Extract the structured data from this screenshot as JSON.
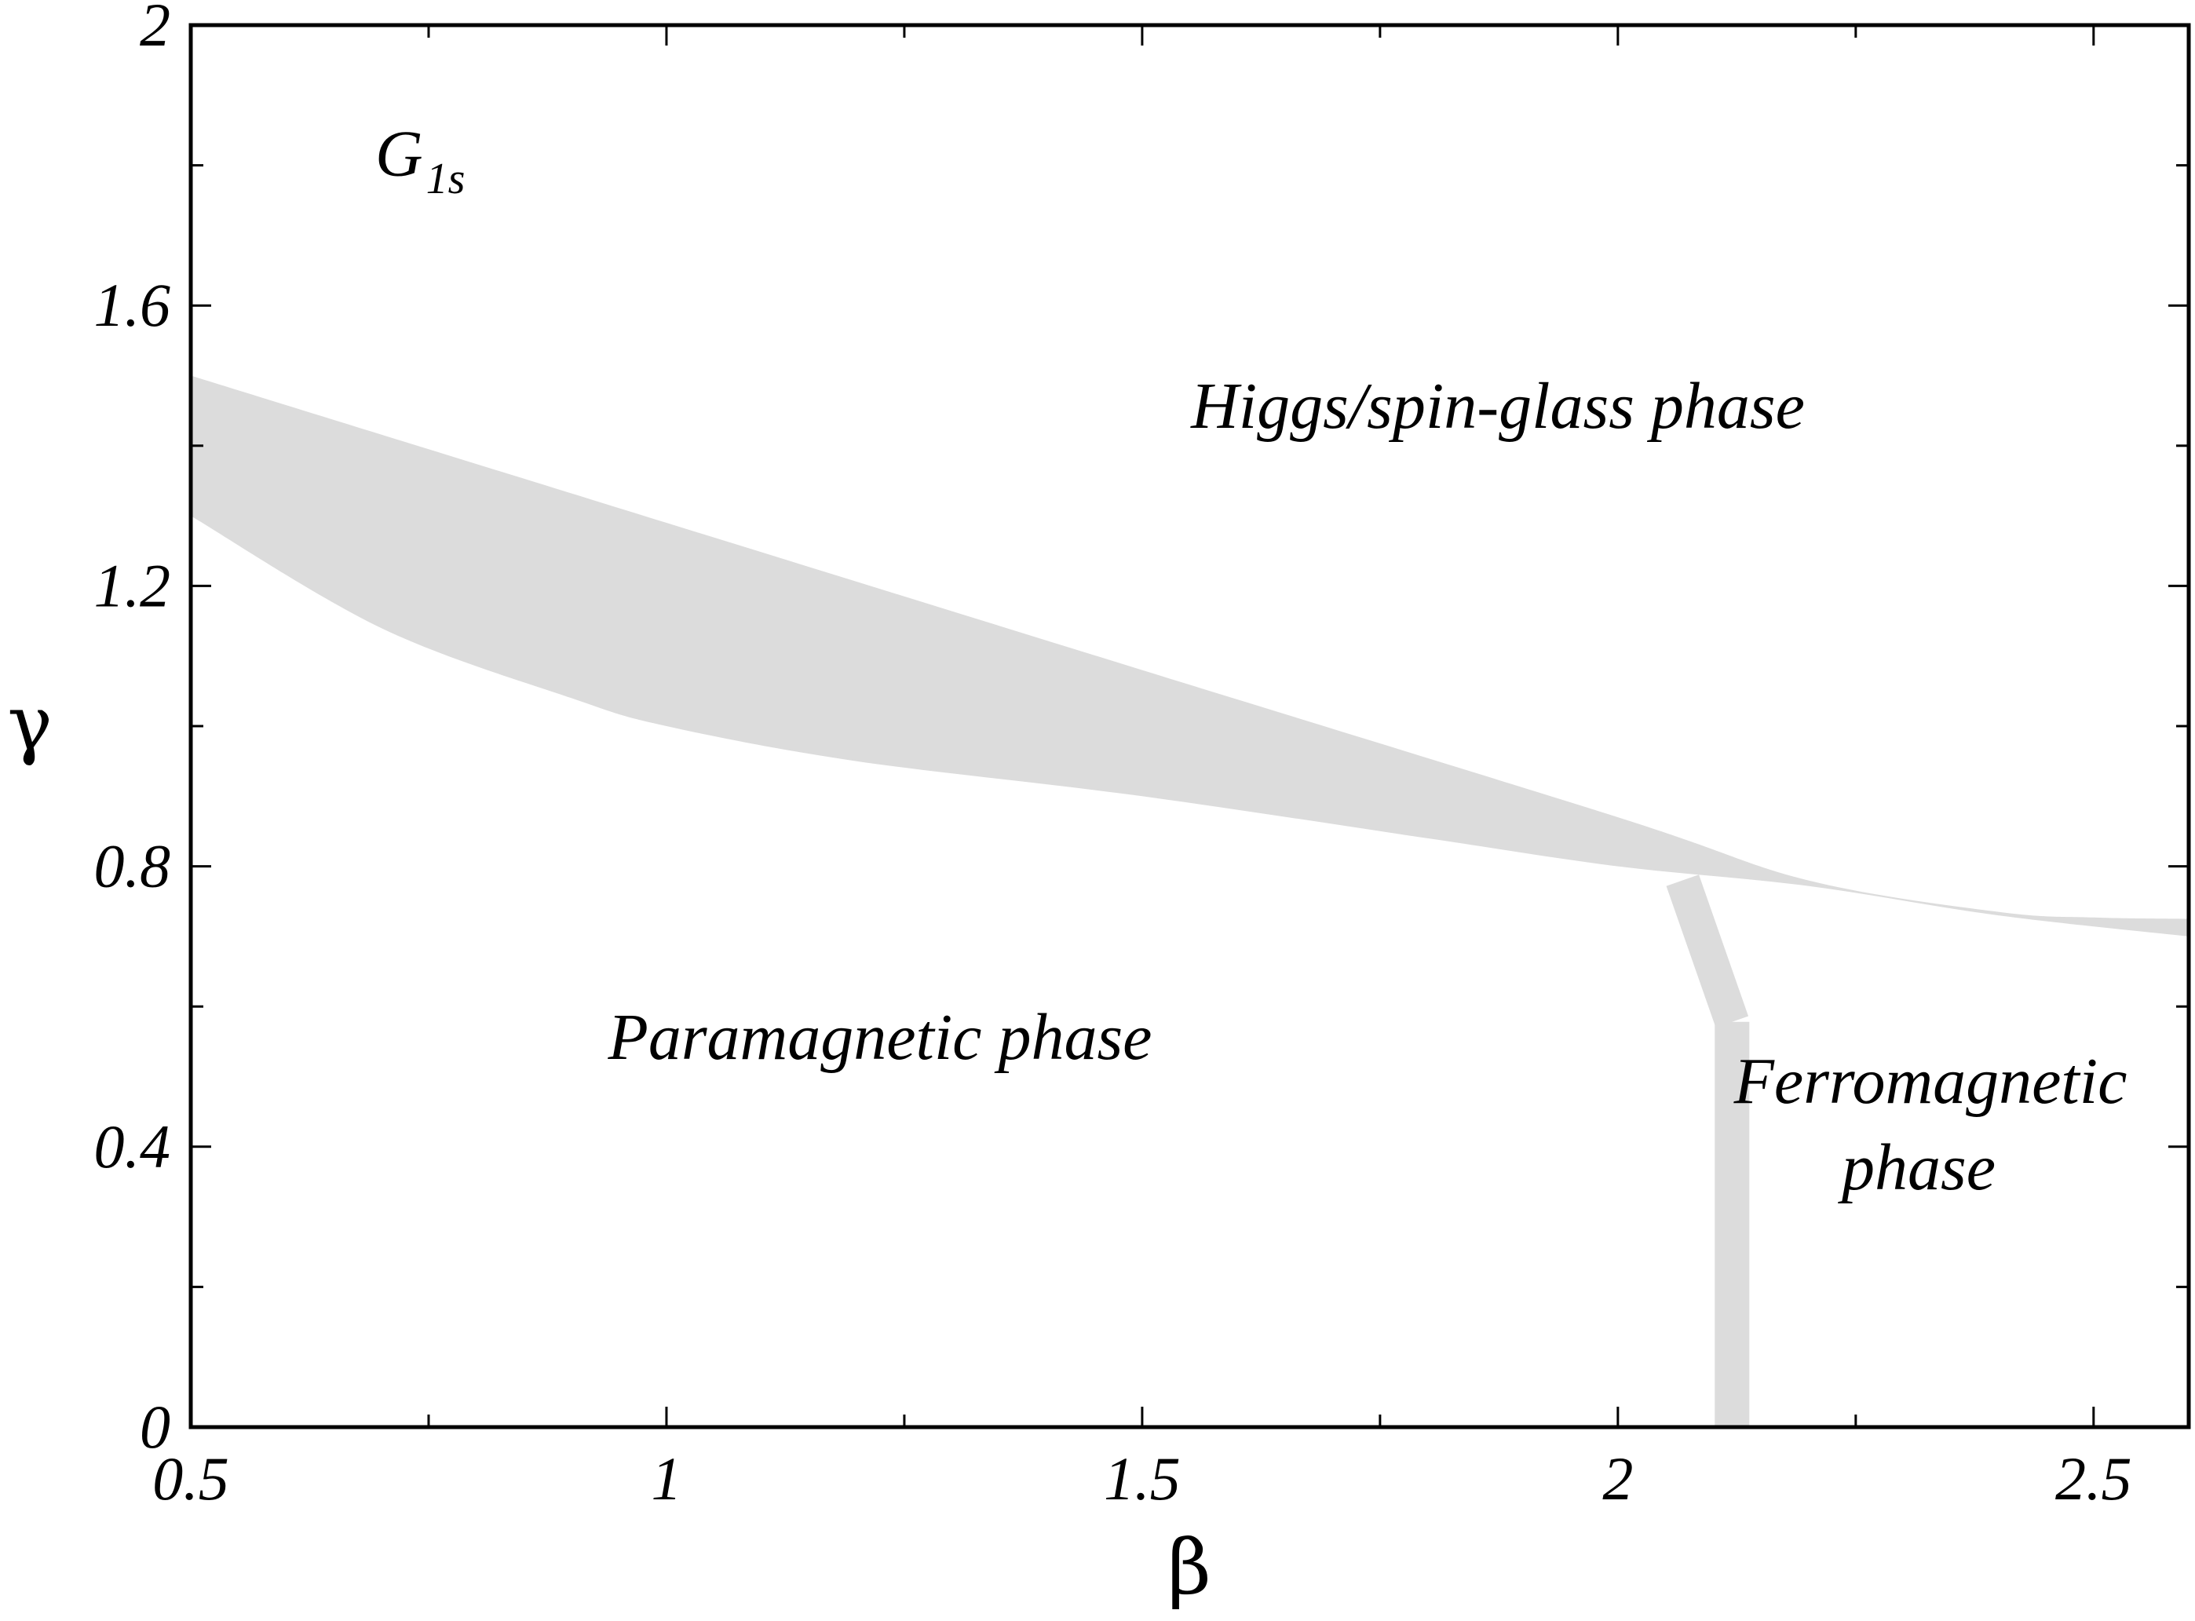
{
  "chart_data": {
    "type": "area",
    "title": "",
    "xlabel": "β",
    "ylabel": "γ",
    "xlim": [
      0.5,
      2.6
    ],
    "ylim": [
      0,
      2
    ],
    "x_ticks": [
      {
        "value": 0.5,
        "label": "0.5"
      },
      {
        "value": 1,
        "label": "1"
      },
      {
        "value": 1.5,
        "label": "1.5"
      },
      {
        "value": 2,
        "label": "2"
      },
      {
        "value": 2.5,
        "label": "2.5"
      }
    ],
    "x_minor_ticks": [
      0.75,
      1.25,
      1.75,
      2.25
    ],
    "y_ticks": [
      {
        "value": 0,
        "label": "0"
      },
      {
        "value": 0.4,
        "label": "0.4"
      },
      {
        "value": 0.8,
        "label": "0.8"
      },
      {
        "value": 1.2,
        "label": "1.2"
      },
      {
        "value": 1.6,
        "label": "1.6"
      },
      {
        "value": 2,
        "label": "2"
      }
    ],
    "y_minor_ticks": [
      0.2,
      0.6,
      1.0,
      1.4,
      1.8
    ],
    "grid": false,
    "fill_color": "#dcdcdc",
    "bands": [
      {
        "upper": [
          [
            0.5,
            1.5
          ],
          [
            1.0,
            1.29
          ],
          [
            1.5,
            1.08
          ],
          [
            2.0,
            0.87
          ],
          [
            2.2,
            0.78
          ],
          [
            2.4,
            0.735
          ],
          [
            2.5,
            0.727
          ],
          [
            2.6,
            0.725
          ]
        ],
        "lower": [
          [
            0.5,
            1.3
          ],
          [
            0.7,
            1.14
          ],
          [
            0.9,
            1.04
          ],
          [
            1.0,
            1.0
          ],
          [
            1.2,
            0.95
          ],
          [
            1.5,
            0.9
          ],
          [
            1.8,
            0.84
          ],
          [
            2.0,
            0.8
          ],
          [
            2.2,
            0.772
          ],
          [
            2.4,
            0.73
          ],
          [
            2.6,
            0.7
          ]
        ]
      }
    ],
    "boundaries": [
      {
        "points": [
          [
            2.068,
            0.78
          ],
          [
            2.12,
            0.578
          ]
        ]
      },
      {
        "points": [
          [
            2.12,
            0.578
          ],
          [
            2.12,
            0
          ]
        ]
      }
    ],
    "panel_label": {
      "main": "G",
      "sub": "1s"
    },
    "annotations": [
      {
        "lines": [
          "Higgs/spin-glass phase"
        ]
      },
      {
        "lines": [
          "Paramagnetic phase"
        ]
      },
      {
        "lines": [
          "Ferromagnetic",
          "phase"
        ]
      }
    ]
  }
}
